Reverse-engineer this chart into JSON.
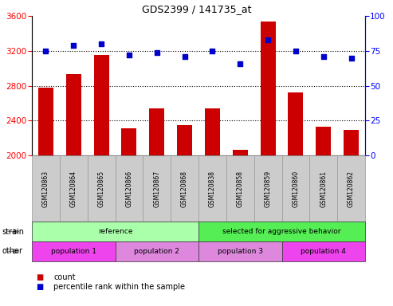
{
  "title": "GDS2399 / 141735_at",
  "samples": [
    "GSM120863",
    "GSM120864",
    "GSM120865",
    "GSM120866",
    "GSM120867",
    "GSM120868",
    "GSM120838",
    "GSM120858",
    "GSM120859",
    "GSM120860",
    "GSM120861",
    "GSM120862"
  ],
  "counts": [
    2775,
    2930,
    3155,
    2310,
    2540,
    2350,
    2540,
    2060,
    3540,
    2720,
    2330,
    2290
  ],
  "percentiles": [
    75,
    79,
    80,
    72,
    74,
    71,
    75,
    66,
    83,
    75,
    71,
    70
  ],
  "ylim_left": [
    2000,
    3600
  ],
  "ylim_right": [
    0,
    100
  ],
  "yticks_left": [
    2000,
    2400,
    2800,
    3200,
    3600
  ],
  "yticks_right": [
    0,
    25,
    50,
    75,
    100
  ],
  "bar_color": "#cc0000",
  "dot_color": "#0000cc",
  "strain_groups": [
    {
      "label": "reference",
      "start": 0,
      "end": 6,
      "color": "#aaffaa"
    },
    {
      "label": "selected for aggressive behavior",
      "start": 6,
      "end": 12,
      "color": "#55ee55"
    }
  ],
  "other_groups": [
    {
      "label": "population 1",
      "start": 0,
      "end": 3,
      "color": "#ee44ee"
    },
    {
      "label": "population 2",
      "start": 3,
      "end": 6,
      "color": "#dd88dd"
    },
    {
      "label": "population 3",
      "start": 6,
      "end": 9,
      "color": "#dd88dd"
    },
    {
      "label": "population 4",
      "start": 9,
      "end": 12,
      "color": "#ee44ee"
    }
  ],
  "legend_count_color": "#cc0000",
  "legend_dot_color": "#0000cc",
  "background_color": "#ffffff",
  "col_bg_color": "#cccccc",
  "col_edge_color": "#999999",
  "strain_ref_color": "#aaffaa",
  "strain_sel_color": "#55ee55",
  "other_pop1_color": "#ee44ee",
  "other_pop2_color": "#dd88dd",
  "other_pop3_color": "#dd88dd",
  "other_pop4_color": "#ee44ee"
}
